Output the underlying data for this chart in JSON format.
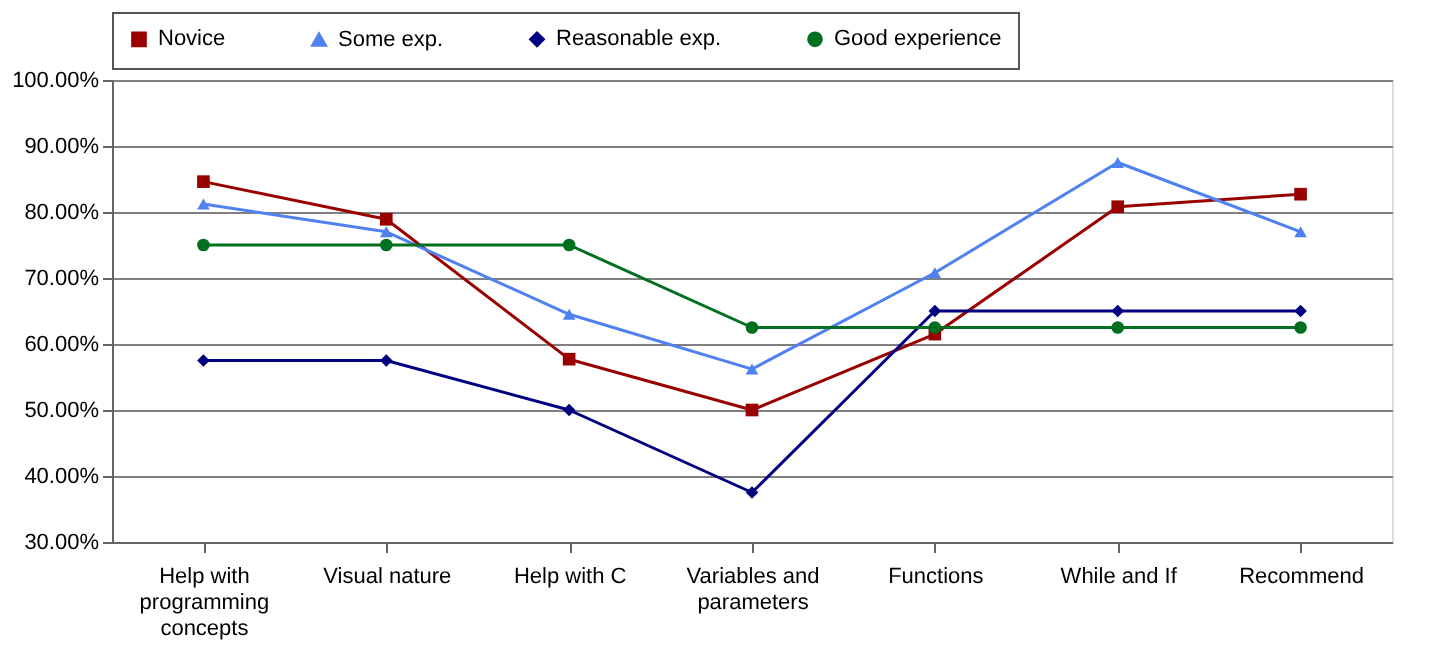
{
  "chart_data": {
    "type": "line",
    "categories": [
      "Help with programming concepts",
      "Visual nature",
      "Help with C",
      "Variables and parameters",
      "Functions",
      "While and If",
      "Recommend"
    ],
    "series": [
      {
        "name": "Novice",
        "color": "#990000",
        "marker": "square",
        "values": [
          84.6,
          78.9,
          57.7,
          50.0,
          61.5,
          80.8,
          82.7
        ]
      },
      {
        "name": "Some exp.",
        "color": "#4f81f0",
        "marker": "triangle",
        "values": [
          81.2,
          77.0,
          64.5,
          56.2,
          70.8,
          87.5,
          77.0
        ]
      },
      {
        "name": "Reasonable exp.",
        "color": "#000080",
        "marker": "diamond",
        "values": [
          57.5,
          57.5,
          50.0,
          37.5,
          65.0,
          65.0,
          65.0
        ]
      },
      {
        "name": "Good experience",
        "color": "#007020",
        "marker": "circle",
        "values": [
          75.0,
          75.0,
          75.0,
          62.5,
          62.5,
          62.5,
          62.5
        ]
      }
    ],
    "ylim": [
      30,
      100
    ],
    "yticks": [
      {
        "value": 30,
        "label": "30.00%"
      },
      {
        "value": 40,
        "label": "40.00%"
      },
      {
        "value": 50,
        "label": "50.00%"
      },
      {
        "value": 60,
        "label": "60.00%"
      },
      {
        "value": 70,
        "label": "70.00%"
      },
      {
        "value": 80,
        "label": "80.00%"
      },
      {
        "value": 90,
        "label": "90.00%"
      },
      {
        "value": 100,
        "label": "100.00%"
      }
    ],
    "grid": "y",
    "legend": "top",
    "line_style": "solid"
  }
}
